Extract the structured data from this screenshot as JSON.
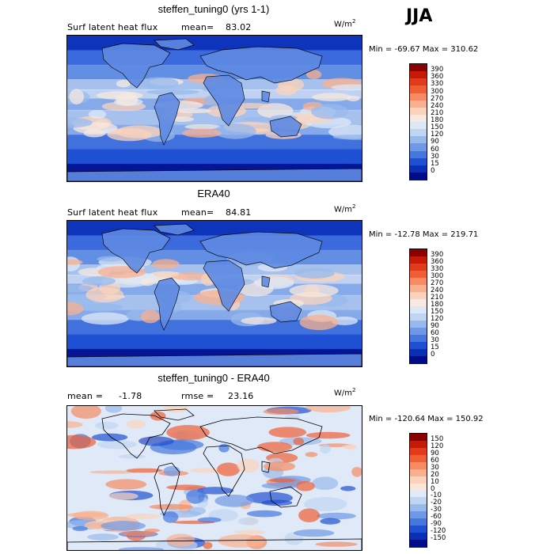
{
  "season": "JJA",
  "panels": [
    {
      "title": "steffen_tuning0 (yrs 1-1)",
      "variable": "Surf latent heat flux",
      "mean_label": "mean=",
      "mean_value": "83.02",
      "rmse_label": "",
      "rmse_value": "",
      "units_base": "W/m",
      "units_exp": "2",
      "minmax": "Min = -69.67 Max = 310.62",
      "colorbar": {
        "labels": [
          "390",
          "360",
          "330",
          "300",
          "270",
          "240",
          "210",
          "180",
          "150",
          "120",
          "90",
          "60",
          "30",
          "15",
          "0"
        ],
        "colors": [
          "#8b0000",
          "#c61a09",
          "#e23b1b",
          "#f05e36",
          "#f78a62",
          "#f9b08f",
          "#fbd3bc",
          "#f7e9df",
          "#dde8f7",
          "#bfd5f2",
          "#98b9ec",
          "#6f99e6",
          "#4677dd",
          "#1f50d2",
          "#0a2fb6",
          "#000c8a"
        ]
      },
      "map_style": "latent"
    },
    {
      "title": "ERA40",
      "variable": "Surf latent heat flux",
      "mean_label": "mean=",
      "mean_value": "84.81",
      "rmse_label": "",
      "rmse_value": "",
      "units_base": "W/m",
      "units_exp": "2",
      "minmax": "Min = -12.78 Max = 219.71",
      "colorbar": {
        "labels": [
          "390",
          "360",
          "330",
          "300",
          "270",
          "240",
          "210",
          "180",
          "150",
          "120",
          "90",
          "60",
          "30",
          "15",
          "0"
        ],
        "colors": [
          "#8b0000",
          "#c61a09",
          "#e23b1b",
          "#f05e36",
          "#f78a62",
          "#f9b08f",
          "#fbd3bc",
          "#f7e9df",
          "#dde8f7",
          "#bfd5f2",
          "#98b9ec",
          "#6f99e6",
          "#4677dd",
          "#1f50d2",
          "#0a2fb6",
          "#000c8a"
        ]
      },
      "map_style": "latent"
    },
    {
      "title": "steffen_tuning0 - ERA40",
      "variable": "",
      "mean_label": "mean =",
      "mean_value": "-1.78",
      "rmse_label": "rmse =",
      "rmse_value": "23.16",
      "units_base": "W/m",
      "units_exp": "2",
      "minmax": "Min = -120.64 Max = 150.92",
      "colorbar": {
        "labels": [
          "150",
          "120",
          "90",
          "60",
          "30",
          "20",
          "10",
          "0",
          "-10",
          "-20",
          "-30",
          "-60",
          "-90",
          "-120",
          "-150"
        ],
        "colors": [
          "#8b0000",
          "#c61a09",
          "#e23b1b",
          "#f05e36",
          "#f78a62",
          "#f9b08f",
          "#fbd3bc",
          "#fbe7da",
          "#dfe9f8",
          "#bfd5f2",
          "#98b9ec",
          "#6f99e6",
          "#4677dd",
          "#1f50d2",
          "#0a2fb6",
          "#000c8a"
        ]
      },
      "map_style": "diff"
    }
  ]
}
